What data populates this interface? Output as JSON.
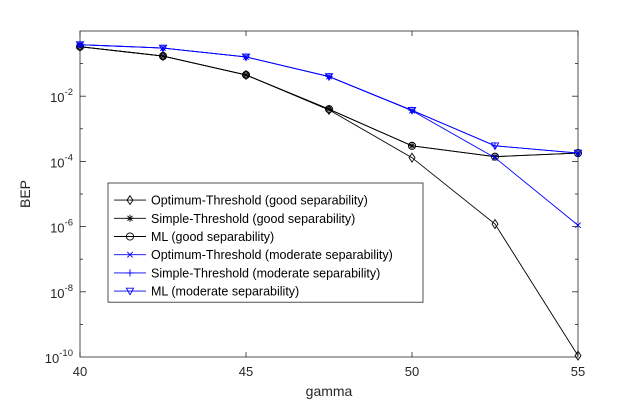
{
  "chart_data": {
    "type": "line",
    "title": "",
    "xlabel": "gamma",
    "ylabel": "BEP",
    "xlim": [
      40,
      55
    ],
    "ylim_log10": [
      -10,
      0
    ],
    "y_scale": "log",
    "grid": false,
    "legend_position": "center-left",
    "x_ticks": [
      {
        "value": 40,
        "label": "40"
      },
      {
        "value": 45,
        "label": "45"
      },
      {
        "value": 50,
        "label": "50"
      },
      {
        "value": 55,
        "label": "55"
      }
    ],
    "y_ticks": [
      {
        "exp": -10,
        "base": "10",
        "sup": "-10"
      },
      {
        "exp": -8,
        "base": "10",
        "sup": "-8"
      },
      {
        "exp": -6,
        "base": "10",
        "sup": "-6"
      },
      {
        "exp": -4,
        "base": "10",
        "sup": "-4"
      },
      {
        "exp": -2,
        "base": "10",
        "sup": "-2"
      }
    ],
    "x": [
      40,
      42.5,
      45,
      47.5,
      50,
      52.5,
      55
    ],
    "series": [
      {
        "name": "Optimum-Threshold (good separability)",
        "color": "#000000",
        "marker": "diamond",
        "values": [
          0.33,
          0.17,
          0.045,
          0.0038,
          0.00013,
          1.2e-06,
          1.1e-10
        ]
      },
      {
        "name": "Simple-Threshold (good separability)",
        "color": "#000000",
        "marker": "asterisk",
        "values": [
          0.33,
          0.17,
          0.045,
          0.004,
          0.0003,
          0.00014,
          0.00018
        ]
      },
      {
        "name": "ML (good separability)",
        "color": "#000000",
        "marker": "circle",
        "values": [
          0.33,
          0.17,
          0.045,
          0.004,
          0.0003,
          0.00014,
          0.00018
        ]
      },
      {
        "name": "Optimum-Threshold (moderate separability)",
        "color": "#0000ff",
        "marker": "x",
        "values": [
          0.38,
          0.3,
          0.16,
          0.04,
          0.0036,
          0.00013,
          1.1e-06
        ]
      },
      {
        "name": "Simple-Threshold (moderate separability)",
        "color": "#0000ff",
        "marker": "plus",
        "values": [
          0.38,
          0.3,
          0.16,
          0.04,
          0.0037,
          0.0003,
          0.00018
        ]
      },
      {
        "name": "ML (moderate separability)",
        "color": "#0000ff",
        "marker": "triangle-down",
        "values": [
          0.38,
          0.3,
          0.16,
          0.04,
          0.0037,
          0.0003,
          0.00018
        ]
      }
    ]
  }
}
